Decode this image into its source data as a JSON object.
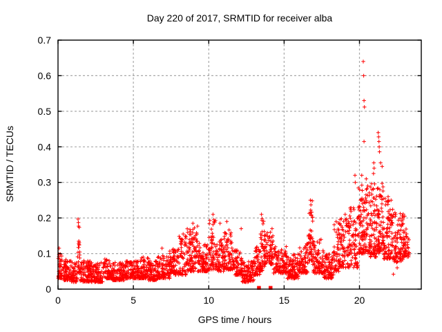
{
  "window": {
    "title": "Day 220 of 2017, SRMTID for receiver alba"
  },
  "style": {
    "point_color": "#ff0000",
    "grid_color": "#a8a8a8",
    "border_color": "#000000",
    "background": "#ffffff",
    "text_color": "#000000"
  },
  "chart_data": {
    "type": "scatter",
    "title": "Day 220 of 2017, SRMTID for receiver alba",
    "xlabel": "GPS time / hours",
    "ylabel": "SRMTID / TECUs",
    "xlim": [
      0,
      24.1
    ],
    "ylim": [
      0,
      0.7
    ],
    "xticks": {
      "values": [
        0,
        5,
        10,
        15,
        20
      ],
      "labels": [
        "0",
        "5",
        "10",
        "15",
        "20"
      ]
    },
    "yticks": {
      "values": [
        0,
        0.1,
        0.2,
        0.3,
        0.4,
        0.5,
        0.6,
        0.7
      ],
      "labels": [
        "0",
        "0.1",
        "0.2",
        "0.3",
        "0.4",
        "0.5",
        "0.6",
        "0.7"
      ]
    },
    "grid": true,
    "legend": false,
    "marker": "plus",
    "marker_size": 5.5,
    "square_marker_size": 5.5,
    "seed": 20170220,
    "points_note": "dense scatter summarized as band segments [x0,x1,ylow,yhigh,count] plus explicit outlier points",
    "band_segments": [
      [
        0.0,
        0.3,
        0.03,
        0.1,
        40
      ],
      [
        0.3,
        0.9,
        0.025,
        0.085,
        75
      ],
      [
        0.9,
        1.3,
        0.02,
        0.075,
        50
      ],
      [
        1.3,
        1.45,
        0.045,
        0.175,
        22
      ],
      [
        1.45,
        2.2,
        0.02,
        0.08,
        95
      ],
      [
        2.2,
        3.0,
        0.02,
        0.075,
        100
      ],
      [
        3.0,
        3.6,
        0.03,
        0.085,
        75
      ],
      [
        3.6,
        4.4,
        0.025,
        0.075,
        100
      ],
      [
        4.4,
        5.2,
        0.03,
        0.08,
        100
      ],
      [
        5.2,
        6.0,
        0.03,
        0.09,
        100
      ],
      [
        6.0,
        6.6,
        0.025,
        0.08,
        75
      ],
      [
        6.6,
        7.4,
        0.03,
        0.095,
        100
      ],
      [
        7.4,
        8.0,
        0.04,
        0.115,
        75
      ],
      [
        8.0,
        8.5,
        0.04,
        0.15,
        60
      ],
      [
        8.5,
        9.3,
        0.05,
        0.18,
        100
      ],
      [
        9.3,
        10.0,
        0.05,
        0.13,
        90
      ],
      [
        10.0,
        10.5,
        0.055,
        0.2,
        65
      ],
      [
        10.5,
        11.0,
        0.05,
        0.14,
        65
      ],
      [
        11.0,
        11.6,
        0.055,
        0.17,
        78
      ],
      [
        11.6,
        12.2,
        0.04,
        0.11,
        78
      ],
      [
        12.2,
        13.0,
        0.02,
        0.08,
        100
      ],
      [
        13.0,
        13.4,
        0.04,
        0.12,
        50
      ],
      [
        13.4,
        13.7,
        0.05,
        0.2,
        42
      ],
      [
        13.7,
        14.3,
        0.07,
        0.165,
        75
      ],
      [
        14.3,
        15.2,
        0.045,
        0.12,
        110
      ],
      [
        15.2,
        16.0,
        0.03,
        0.1,
        100
      ],
      [
        16.0,
        16.6,
        0.045,
        0.13,
        75
      ],
      [
        16.6,
        16.9,
        0.08,
        0.25,
        45
      ],
      [
        16.9,
        17.6,
        0.045,
        0.14,
        85
      ],
      [
        17.6,
        18.3,
        0.03,
        0.105,
        85
      ],
      [
        18.3,
        18.7,
        0.05,
        0.19,
        50
      ],
      [
        18.7,
        19.3,
        0.06,
        0.2,
        75
      ],
      [
        19.3,
        19.9,
        0.06,
        0.23,
        80
      ],
      [
        19.9,
        20.7,
        0.1,
        0.3,
        130
      ],
      [
        20.7,
        21.1,
        0.09,
        0.3,
        70
      ],
      [
        21.1,
        21.6,
        0.1,
        0.3,
        80
      ],
      [
        21.6,
        22.3,
        0.085,
        0.25,
        100
      ],
      [
        22.3,
        22.9,
        0.075,
        0.215,
        85
      ],
      [
        22.9,
        23.3,
        0.09,
        0.17,
        50
      ]
    ],
    "outlier_points": [
      [
        0.07,
        0.115
      ],
      [
        1.33,
        0.197
      ],
      [
        1.35,
        0.187
      ],
      [
        1.36,
        0.177
      ],
      [
        1.38,
        0.135
      ],
      [
        1.4,
        0.125
      ],
      [
        6.9,
        0.115
      ],
      [
        8.3,
        0.155
      ],
      [
        8.95,
        0.185
      ],
      [
        9.05,
        0.172
      ],
      [
        10.28,
        0.21
      ],
      [
        10.34,
        0.195
      ],
      [
        10.75,
        0.185
      ],
      [
        11.2,
        0.19
      ],
      [
        12.15,
        0.17
      ],
      [
        13.5,
        0.21
      ],
      [
        13.53,
        0.193
      ],
      [
        14.2,
        0.17
      ],
      [
        16.74,
        0.25
      ],
      [
        16.78,
        0.237
      ],
      [
        16.76,
        0.222
      ],
      [
        16.8,
        0.207
      ],
      [
        18.45,
        0.19
      ],
      [
        19.05,
        0.21
      ],
      [
        19.08,
        0.195
      ],
      [
        19.7,
        0.32
      ],
      [
        19.72,
        0.3
      ],
      [
        20.25,
        0.64
      ],
      [
        20.28,
        0.6
      ],
      [
        20.3,
        0.53
      ],
      [
        20.33,
        0.512
      ],
      [
        20.3,
        0.415
      ],
      [
        20.15,
        0.32
      ],
      [
        20.45,
        0.31
      ],
      [
        20.55,
        0.29
      ],
      [
        20.95,
        0.355
      ],
      [
        20.97,
        0.34
      ],
      [
        20.93,
        0.325
      ],
      [
        21.24,
        0.44
      ],
      [
        21.27,
        0.428
      ],
      [
        21.29,
        0.415
      ],
      [
        21.31,
        0.4
      ],
      [
        21.33,
        0.386
      ],
      [
        21.4,
        0.355
      ],
      [
        21.5,
        0.345
      ],
      [
        21.7,
        0.255
      ],
      [
        21.9,
        0.26
      ],
      [
        22.1,
        0.25
      ],
      [
        22.25,
        0.042
      ],
      [
        22.5,
        0.06
      ],
      [
        23.0,
        0.205
      ]
    ],
    "zero_square_markers_x": [
      13.33,
      14.1
    ]
  }
}
